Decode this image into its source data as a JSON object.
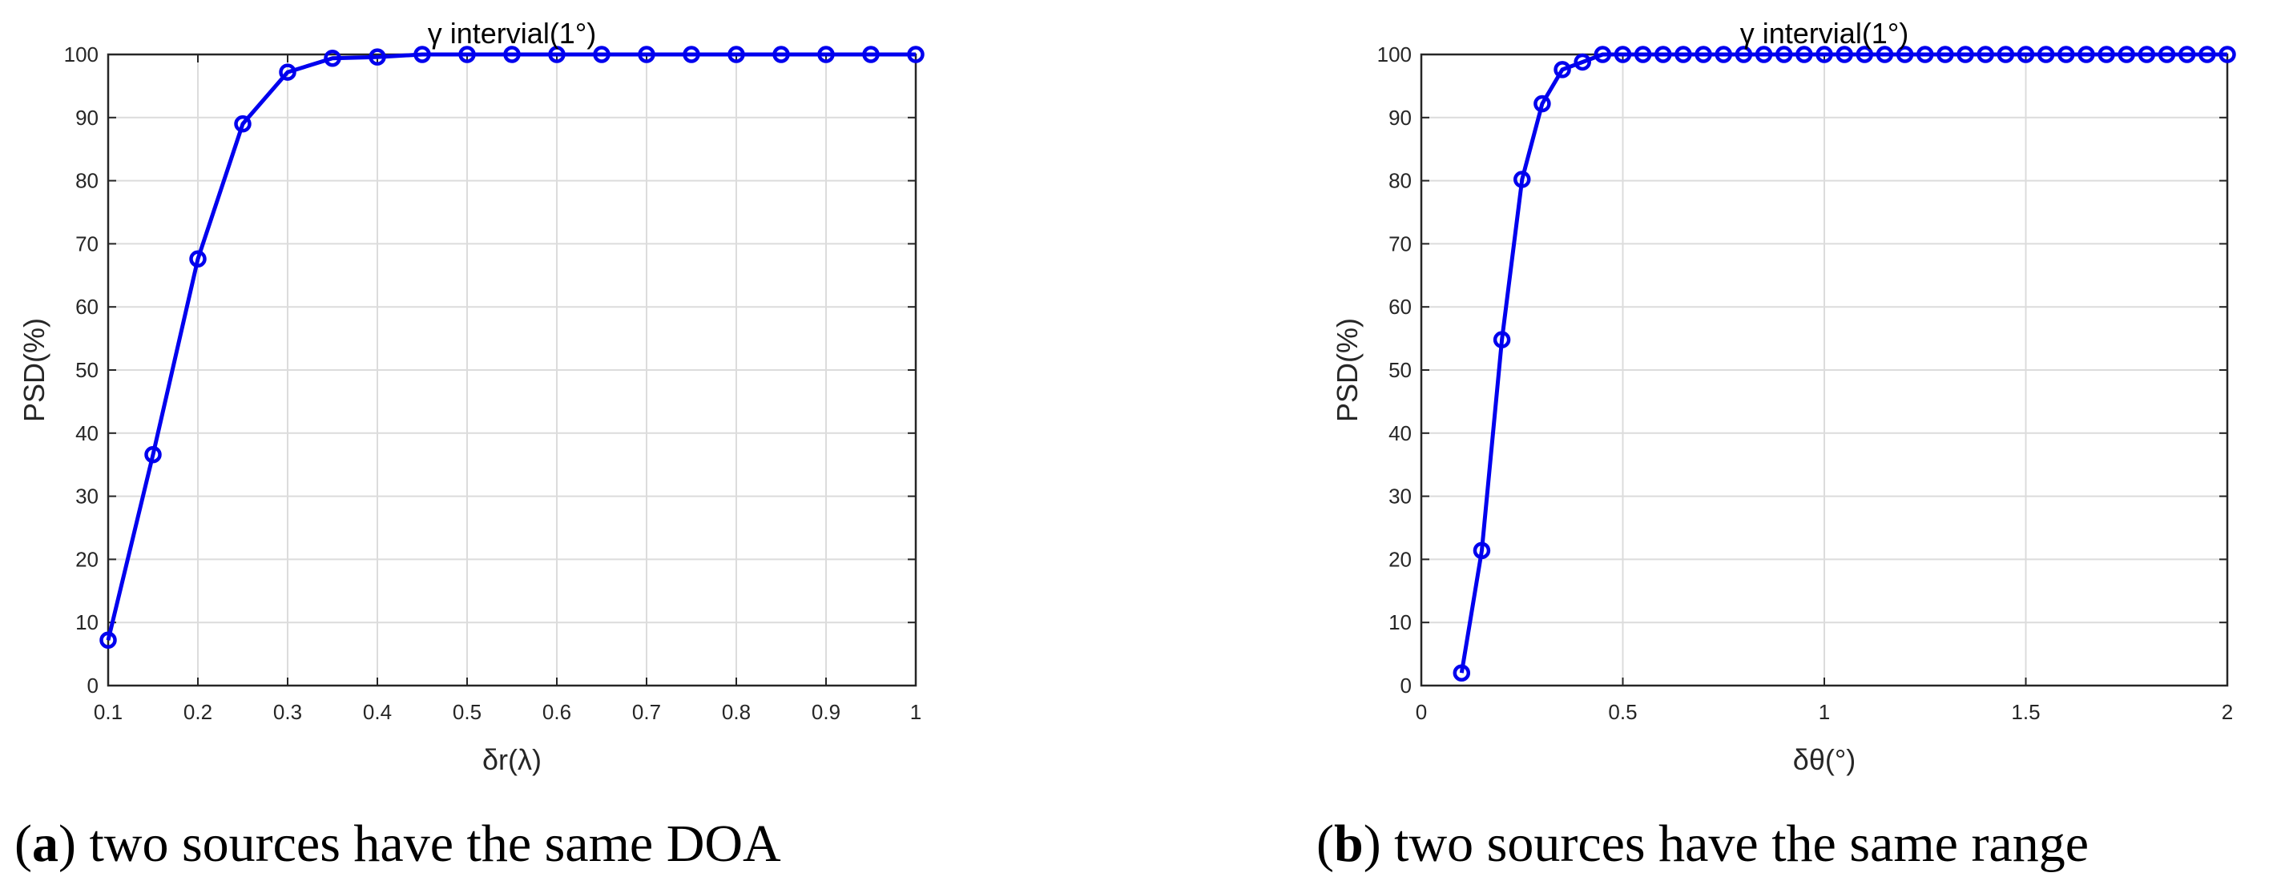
{
  "chart_data": [
    {
      "type": "line",
      "title": "γ intervial(1°)",
      "xlabel": "δr(λ)",
      "ylabel": "PSD(%)",
      "caption_letter": "a",
      "caption_text": "two sources have the same DOA",
      "xlim": [
        0.1,
        1
      ],
      "ylim": [
        0,
        100
      ],
      "grid": true,
      "x_ticks": [
        0.1,
        0.2,
        0.3,
        0.4,
        0.5,
        0.6,
        0.7,
        0.8,
        0.9,
        1
      ],
      "x_tick_labels": [
        "0.1",
        "0.2",
        "0.3",
        "0.4",
        "0.5",
        "0.6",
        "0.7",
        "0.8",
        "0.9",
        "1"
      ],
      "y_ticks": [
        0,
        10,
        20,
        30,
        40,
        50,
        60,
        70,
        80,
        90,
        100
      ],
      "y_tick_labels": [
        "0",
        "10",
        "20",
        "30",
        "40",
        "50",
        "60",
        "70",
        "80",
        "90",
        "100"
      ],
      "series": [
        {
          "color": "#0000ee",
          "marker": "circle",
          "x": [
            0.1,
            0.15,
            0.2,
            0.25,
            0.3,
            0.35,
            0.4,
            0.45,
            0.5,
            0.55,
            0.6,
            0.65,
            0.7,
            0.75,
            0.8,
            0.85,
            0.9,
            0.95,
            1.0
          ],
          "y": [
            7.2,
            36.6,
            67.6,
            89.0,
            97.2,
            99.4,
            99.6,
            100,
            100,
            100,
            100,
            100,
            100,
            100,
            100,
            100,
            100,
            100,
            100
          ]
        }
      ]
    },
    {
      "type": "line",
      "title": "γ intervial(1°)",
      "xlabel": "δθ(°)",
      "ylabel": "PSD(%)",
      "caption_letter": "b",
      "caption_text": "two sources have the same range",
      "xlim": [
        0,
        2
      ],
      "ylim": [
        0,
        100
      ],
      "grid": true,
      "x_ticks": [
        0,
        0.5,
        1,
        1.5,
        2
      ],
      "x_tick_labels": [
        "0",
        "0.5",
        "1",
        "1.5",
        "2"
      ],
      "y_ticks": [
        0,
        10,
        20,
        30,
        40,
        50,
        60,
        70,
        80,
        90,
        100
      ],
      "y_tick_labels": [
        "0",
        "10",
        "20",
        "30",
        "40",
        "50",
        "60",
        "70",
        "80",
        "90",
        "100"
      ],
      "series": [
        {
          "color": "#0000ee",
          "marker": "circle",
          "x": [
            0.1,
            0.15,
            0.2,
            0.25,
            0.3,
            0.35,
            0.4,
            0.45,
            0.5,
            0.55,
            0.6,
            0.65,
            0.7,
            0.75,
            0.8,
            0.85,
            0.9,
            0.95,
            1.0,
            1.05,
            1.1,
            1.15,
            1.2,
            1.25,
            1.3,
            1.35,
            1.4,
            1.45,
            1.5,
            1.55,
            1.6,
            1.65,
            1.7,
            1.75,
            1.8,
            1.85,
            1.9,
            1.95,
            2.0
          ],
          "y": [
            2.0,
            21.4,
            54.8,
            80.2,
            92.2,
            97.6,
            98.8,
            100,
            100,
            100,
            100,
            100,
            100,
            100,
            100,
            100,
            100,
            100,
            100,
            100,
            100,
            100,
            100,
            100,
            100,
            100,
            100,
            100,
            100,
            100,
            100,
            100,
            100,
            100,
            100,
            100,
            100,
            100,
            100
          ]
        }
      ]
    }
  ]
}
